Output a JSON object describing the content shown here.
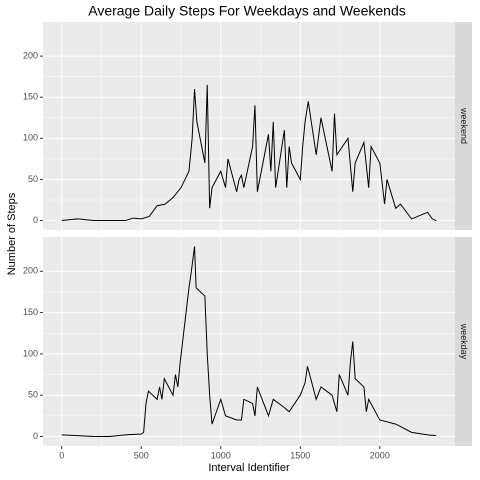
{
  "chart_data": {
    "type": "line",
    "title": "Average Daily Steps For Weekdays and Weekends",
    "xlabel": "Interval Identifier",
    "ylabel": "Number of Steps",
    "xlim": [
      -117.75,
      2472.75
    ],
    "xticks": [
      0,
      500,
      1000,
      1500,
      2000
    ],
    "ylim": [
      -11.5,
      241.5
    ],
    "yticks": [
      0,
      50,
      100,
      150,
      200
    ],
    "grid": true,
    "series": [
      {
        "name": "weekend",
        "color": "#000000",
        "x": [
          0,
          100,
          200,
          300,
          400,
          450,
          500,
          550,
          600,
          650,
          700,
          750,
          800,
          820,
          835,
          850,
          900,
          915,
          930,
          945,
          1000,
          1030,
          1045,
          1100,
          1115,
          1130,
          1145,
          1200,
          1215,
          1230,
          1300,
          1315,
          1330,
          1345,
          1400,
          1415,
          1430,
          1445,
          1500,
          1515,
          1530,
          1550,
          1600,
          1630,
          1700,
          1715,
          1730,
          1800,
          1830,
          1845,
          1900,
          1930,
          1945,
          2000,
          2030,
          2045,
          2100,
          2130,
          2200,
          2300,
          2330,
          2355
        ],
        "values": [
          0,
          2,
          0,
          0,
          0,
          3,
          2,
          5,
          18,
          20,
          28,
          40,
          60,
          100,
          160,
          120,
          70,
          165,
          15,
          40,
          60,
          40,
          75,
          35,
          50,
          55,
          40,
          90,
          140,
          35,
          105,
          60,
          120,
          40,
          110,
          40,
          90,
          70,
          50,
          90,
          120,
          145,
          80,
          125,
          60,
          130,
          80,
          100,
          35,
          70,
          95,
          40,
          90,
          70,
          20,
          50,
          15,
          20,
          2,
          10,
          2,
          0
        ]
      },
      {
        "name": "weekday",
        "color": "#000000",
        "x": [
          0,
          100,
          200,
          300,
          400,
          500,
          515,
          530,
          545,
          600,
          615,
          630,
          645,
          700,
          715,
          730,
          745,
          800,
          815,
          835,
          845,
          900,
          915,
          930,
          945,
          1000,
          1030,
          1100,
          1130,
          1145,
          1200,
          1215,
          1230,
          1300,
          1330,
          1400,
          1430,
          1500,
          1530,
          1545,
          1600,
          1630,
          1700,
          1730,
          1745,
          1800,
          1815,
          1830,
          1845,
          1900,
          1915,
          1930,
          2000,
          2100,
          2200,
          2300,
          2355
        ],
        "values": [
          2,
          1,
          0,
          0,
          2,
          3,
          5,
          40,
          55,
          45,
          60,
          45,
          70,
          50,
          75,
          60,
          90,
          180,
          200,
          230,
          180,
          170,
          100,
          50,
          15,
          45,
          25,
          20,
          20,
          45,
          40,
          25,
          60,
          25,
          45,
          35,
          30,
          50,
          65,
          85,
          45,
          60,
          50,
          30,
          75,
          50,
          90,
          115,
          70,
          60,
          30,
          45,
          20,
          15,
          5,
          2,
          1
        ]
      }
    ]
  }
}
